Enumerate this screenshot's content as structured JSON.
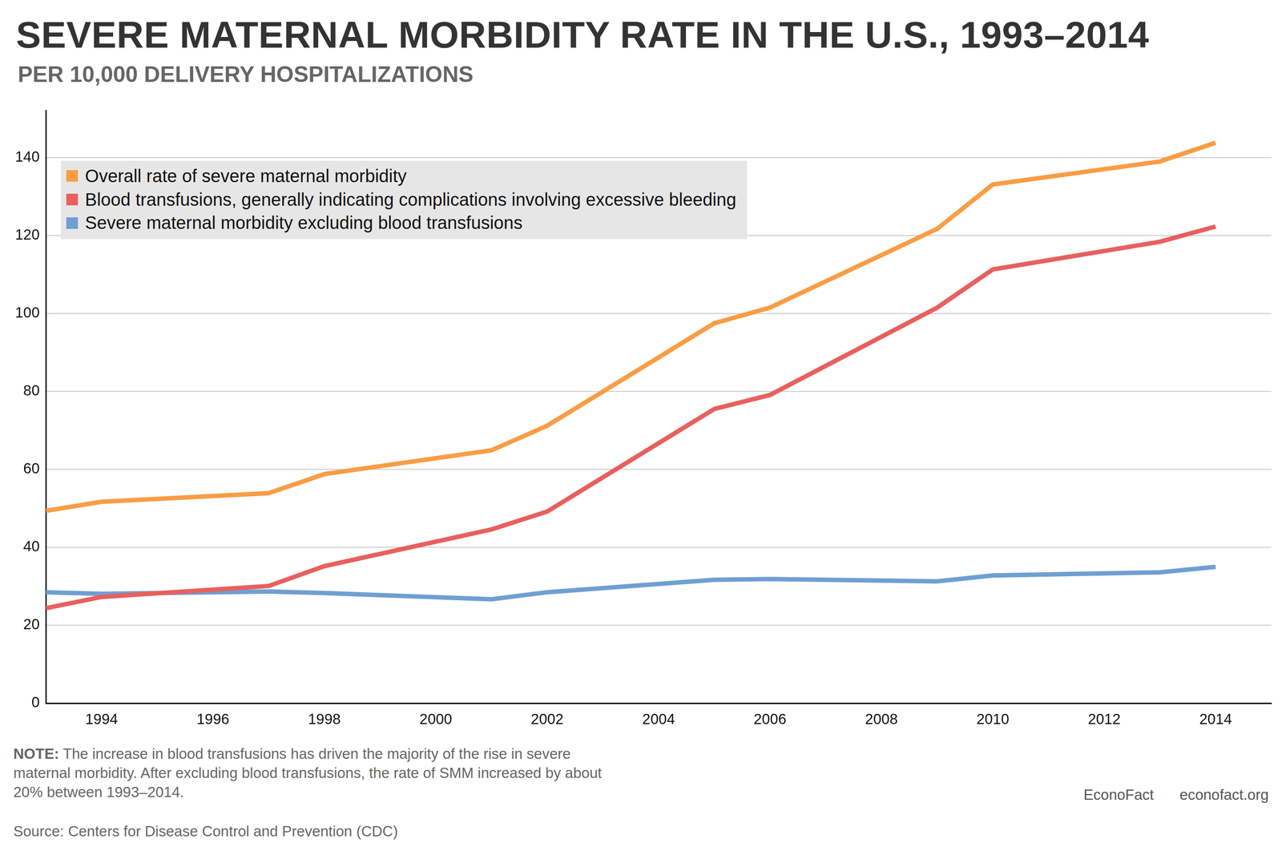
{
  "chart_data": {
    "type": "line",
    "title": "SEVERE MATERNAL MORBIDITY RATE IN THE U.S., 1993–2014",
    "subtitle": "PER 10,000 DELIVERY HOSPITALIZATIONS",
    "x": [
      1993,
      1994,
      1997,
      1998,
      2001,
      2002,
      2005,
      2006,
      2009,
      2010,
      2013,
      2014
    ],
    "series": [
      {
        "name": "Overall rate of severe maternal morbidity",
        "color": "#f99d45",
        "values": [
          49.4,
          51.7,
          53.9,
          58.8,
          64.9,
          71.2,
          97.5,
          101.5,
          121.7,
          133.1,
          139.0,
          143.8
        ]
      },
      {
        "name": "Blood transfusions, generally indicating complications involving excessive bleeding",
        "color": "#e8605e",
        "values": [
          24.4,
          27.3,
          30.1,
          35.2,
          44.6,
          49.2,
          75.5,
          79.1,
          101.5,
          111.3,
          118.4,
          122.3
        ]
      },
      {
        "name": "Severe maternal morbidity excluding blood transfusions",
        "color": "#6f9fd3",
        "values": [
          28.5,
          28.1,
          28.7,
          28.3,
          26.7,
          28.5,
          31.7,
          31.9,
          31.3,
          32.8,
          33.6,
          35.0
        ]
      }
    ],
    "xlim": [
      1993,
      2015
    ],
    "xticks": [
      1994,
      1996,
      1998,
      2000,
      2002,
      2004,
      2006,
      2008,
      2010,
      2012,
      2014
    ],
    "ylim": [
      0,
      152
    ],
    "yticks": [
      0,
      20,
      40,
      60,
      80,
      100,
      120,
      140
    ],
    "grid": true,
    "legend": "upper left",
    "note_label": "NOTE:",
    "note": "The increase in blood transfusions has driven the majority of the rise in severe maternal morbidity. After excluding blood transfusions, the rate of SMM increased by about 20% between 1993–2014.",
    "source": "Source: Centers for Disease Control and Prevention (CDC)",
    "credits": [
      "EconoFact",
      "econofact.org"
    ]
  }
}
